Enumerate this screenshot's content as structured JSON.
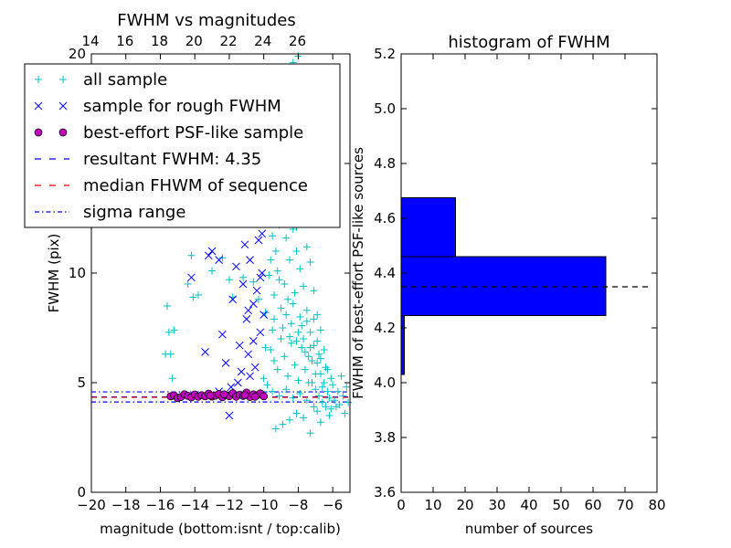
{
  "chart_data": [
    {
      "type": "scatter",
      "title": "FWHM vs magnitudes",
      "xlabel": "magnitude (bottom:isnt / top:calib)",
      "ylabel": "FWHM (pix)",
      "xlim": [
        -20,
        -5
      ],
      "ylim": [
        0,
        20
      ],
      "x_ticks": [
        -20,
        -18,
        -16,
        -14,
        -12,
        -10,
        -8,
        -6
      ],
      "x_tick_labels": [
        "−20",
        "−18",
        "−16",
        "−14",
        "−12",
        "−10",
        "−8",
        "−6"
      ],
      "y_ticks": [
        0,
        5,
        10,
        15,
        20
      ],
      "y_tick_labels": [
        "0",
        "5",
        "10",
        "15",
        "20"
      ],
      "top_axis": {
        "offset": 34.05,
        "ticks": [
          14,
          16,
          18,
          20,
          22,
          24,
          26
        ],
        "tick_labels": [
          "14",
          "16",
          "18",
          "20",
          "22",
          "24",
          "26"
        ]
      },
      "grid": false,
      "legend": {
        "placement": "upper-left",
        "entries": [
          {
            "label": "all sample",
            "marker": "plus",
            "color": "#00bfbf"
          },
          {
            "label": "sample for rough FWHM",
            "marker": "x",
            "color": "#0000ff"
          },
          {
            "label": "best-effort PSF-like sample",
            "marker": "circle",
            "color": "#bf00bf"
          },
          {
            "label": "resultant FWHM: 4.35",
            "marker": "dashed",
            "color": "#0000ff"
          },
          {
            "label": "median FHWM of sequence",
            "marker": "dashed",
            "color": "#ff0000"
          },
          {
            "label": "sigma range",
            "marker": "dashdot",
            "color": "#0000ff"
          }
        ]
      },
      "lines": [
        {
          "y": 4.35,
          "style": "dashed",
          "color": "#0000ff"
        },
        {
          "y": 4.33,
          "style": "dashed",
          "color": "#ff0000"
        },
        {
          "y": 4.58,
          "style": "dashdot",
          "color": "#0000ff"
        },
        {
          "y": 4.12,
          "style": "dashdot",
          "color": "#0000ff"
        }
      ],
      "series": [
        {
          "name": "all sample",
          "marker": "plus",
          "color": "#00bfbf",
          "points": [
            [
              -15.6,
              8.5
            ],
            [
              -15.5,
              7.3
            ],
            [
              -15.4,
              6.3
            ],
            [
              -15.3,
              5.2
            ],
            [
              -15.2,
              7.4
            ],
            [
              -15.7,
              6.3
            ],
            [
              -14.2,
              10.8
            ],
            [
              -14.1,
              8.9
            ],
            [
              -14.4,
              9.5
            ],
            [
              -13.8,
              9.0
            ],
            [
              -13.0,
              10.1
            ],
            [
              -12.4,
              10.7
            ],
            [
              -12.0,
              9.7
            ],
            [
              -11.8,
              8.9
            ],
            [
              -11.2,
              9.8
            ],
            [
              -10.6,
              9.6
            ],
            [
              -10.3,
              8.8
            ],
            [
              -9.9,
              8.2
            ],
            [
              -9.7,
              12.5
            ],
            [
              -9.6,
              13.6
            ],
            [
              -9.5,
              7.4
            ],
            [
              -9.4,
              9.0
            ],
            [
              -9.3,
              11.0
            ],
            [
              -9.2,
              10.1
            ],
            [
              -9.1,
              12.2
            ],
            [
              -9.0,
              8.4
            ],
            [
              -8.9,
              13.0
            ],
            [
              -8.8,
              9.5
            ],
            [
              -8.7,
              11.6
            ],
            [
              -8.6,
              8.8
            ],
            [
              -8.5,
              10.6
            ],
            [
              -8.4,
              7.7
            ],
            [
              -8.3,
              12.0
            ],
            [
              -8.2,
              9.1
            ],
            [
              -8.1,
              11.0
            ],
            [
              -8.0,
              7.3
            ],
            [
              -7.9,
              10.2
            ],
            [
              -7.8,
              6.6
            ],
            [
              -7.7,
              9.4
            ],
            [
              -7.6,
              5.6
            ],
            [
              -7.5,
              8.3
            ],
            [
              -7.4,
              6.2
            ],
            [
              -7.3,
              7.3
            ],
            [
              -7.2,
              5.0
            ],
            [
              -7.1,
              6.7
            ],
            [
              -7.0,
              4.7
            ],
            [
              -6.9,
              5.9
            ],
            [
              -6.8,
              4.4
            ],
            [
              -6.7,
              5.4
            ],
            [
              -6.6,
              4.1
            ],
            [
              -6.5,
              5.0
            ],
            [
              -6.4,
              3.9
            ],
            [
              -6.3,
              4.6
            ],
            [
              -6.2,
              4.3
            ],
            [
              -6.1,
              3.8
            ],
            [
              -6.0,
              4.9
            ],
            [
              -5.9,
              4.2
            ],
            [
              -5.8,
              3.9
            ],
            [
              -5.7,
              4.6
            ],
            [
              -5.6,
              4.0
            ],
            [
              -5.5,
              5.3
            ],
            [
              -5.4,
              4.4
            ],
            [
              -5.3,
              3.6
            ],
            [
              -5.2,
              4.8
            ],
            [
              -5.1,
              4.1
            ],
            [
              -9.6,
              6.5
            ],
            [
              -9.4,
              6.0
            ],
            [
              -9.2,
              5.6
            ],
            [
              -9.0,
              7.0
            ],
            [
              -8.8,
              6.2
            ],
            [
              -8.6,
              5.3
            ],
            [
              -8.4,
              6.8
            ],
            [
              -8.2,
              5.8
            ],
            [
              -8.0,
              5.1
            ],
            [
              -7.8,
              7.6
            ],
            [
              -7.6,
              6.4
            ],
            [
              -7.4,
              5.0
            ],
            [
              -7.2,
              6.0
            ],
            [
              -7.0,
              5.4
            ],
            [
              -6.8,
              6.3
            ],
            [
              -6.6,
              4.8
            ],
            [
              -6.4,
              5.7
            ],
            [
              -6.2,
              3.5
            ],
            [
              -9.8,
              4.9
            ],
            [
              -9.5,
              4.6
            ],
            [
              -9.1,
              4.4
            ],
            [
              -8.7,
              4.7
            ],
            [
              -8.3,
              4.3
            ],
            [
              -7.9,
              4.5
            ],
            [
              -7.5,
              4.2
            ],
            [
              -7.1,
              3.9
            ],
            [
              -6.9,
              3.7
            ],
            [
              -7.7,
              3.4
            ],
            [
              -8.1,
              3.6
            ],
            [
              -8.5,
              3.3
            ],
            [
              -8.9,
              3.1
            ],
            [
              -9.3,
              2.9
            ],
            [
              -7.3,
              2.7
            ],
            [
              -6.7,
              3.2
            ],
            [
              -10.0,
              5.2
            ],
            [
              -9.9,
              6.6
            ],
            [
              -8.6,
              14.2
            ],
            [
              -8.3,
              15.1
            ],
            [
              -8.0,
              13.5
            ],
            [
              -8.8,
              16.0
            ],
            [
              -8.5,
              12.8
            ],
            [
              -8.2,
              14.6
            ],
            [
              -9.0,
              15.3
            ],
            [
              -8.7,
              16.9
            ],
            [
              -8.4,
              17.8
            ],
            [
              -8.1,
              12.1
            ],
            [
              -7.9,
              14.0
            ],
            [
              -8.6,
              18.5
            ],
            [
              -8.3,
              19.6
            ],
            [
              -8.0,
              19.9
            ],
            [
              -8.5,
              17.0
            ],
            [
              -7.7,
              12.6
            ],
            [
              -7.5,
              11.2
            ],
            [
              -7.3,
              10.5
            ],
            [
              -7.1,
              9.2
            ],
            [
              -6.9,
              8.1
            ],
            [
              -6.7,
              7.4
            ],
            [
              -6.5,
              6.5
            ],
            [
              -6.3,
              5.6
            ],
            [
              -6.1,
              5.2
            ],
            [
              -9.6,
              10.6
            ],
            [
              -9.3,
              12.9
            ],
            [
              -9.7,
              9.9
            ],
            [
              -9.5,
              11.7
            ],
            [
              -9.4,
              7.9
            ],
            [
              -9.1,
              9.7
            ],
            [
              -8.9,
              7.5
            ],
            [
              -8.7,
              8.1
            ],
            [
              -8.5,
              7.1
            ],
            [
              -8.3,
              8.6
            ],
            [
              -8.1,
              6.9
            ],
            [
              -7.9,
              8.0
            ],
            [
              -7.7,
              7.0
            ],
            [
              -7.5,
              7.8
            ],
            [
              -7.3,
              6.6
            ],
            [
              -7.1,
              7.9
            ],
            [
              -6.9,
              6.9
            ],
            [
              -6.7,
              6.1
            ]
          ]
        },
        {
          "name": "sample for rough FWHM",
          "marker": "x",
          "color": "#0000ff",
          "points": [
            [
              -14.2,
              9.8
            ],
            [
              -13.4,
              6.4
            ],
            [
              -13.2,
              10.8
            ],
            [
              -13.0,
              11.0
            ],
            [
              -12.6,
              10.6
            ],
            [
              -12.4,
              7.2
            ],
            [
              -12.2,
              5.9
            ],
            [
              -12.0,
              3.5
            ],
            [
              -11.9,
              4.8
            ],
            [
              -11.8,
              8.8
            ],
            [
              -11.6,
              10.3
            ],
            [
              -11.4,
              6.7
            ],
            [
              -11.3,
              5.5
            ],
            [
              -11.2,
              9.5
            ],
            [
              -11.1,
              11.3
            ],
            [
              -11.0,
              7.9
            ],
            [
              -10.9,
              6.3
            ],
            [
              -10.8,
              10.6
            ],
            [
              -10.7,
              12.4
            ],
            [
              -10.6,
              8.6
            ],
            [
              -10.5,
              5.7
            ],
            [
              -10.4,
              9.2
            ],
            [
              -10.3,
              11.5
            ],
            [
              -10.2,
              7.3
            ],
            [
              -10.1,
              10.0
            ],
            [
              -10.0,
              8.1
            ],
            [
              -10.8,
              5.3
            ],
            [
              -11.5,
              5.0
            ],
            [
              -12.6,
              4.6
            ],
            [
              -10.4,
              12.9
            ],
            [
              -10.1,
              11.8
            ],
            [
              -10.6,
              6.9
            ],
            [
              -10.2,
              9.8
            ],
            [
              -10.9,
              8.3
            ],
            [
              -11.0,
              12.7
            ]
          ]
        },
        {
          "name": "best-effort PSF-like sample",
          "marker": "circle",
          "color": "#bf00bf",
          "points": [
            [
              -15.4,
              4.38
            ],
            [
              -15.2,
              4.42
            ],
            [
              -15.0,
              4.3
            ],
            [
              -14.8,
              4.35
            ],
            [
              -14.6,
              4.47
            ],
            [
              -14.4,
              4.4
            ],
            [
              -14.2,
              4.33
            ],
            [
              -14.0,
              4.46
            ],
            [
              -13.8,
              4.36
            ],
            [
              -13.6,
              4.43
            ],
            [
              -13.4,
              4.38
            ],
            [
              -13.2,
              4.5
            ],
            [
              -13.0,
              4.37
            ],
            [
              -12.8,
              4.41
            ],
            [
              -12.6,
              4.48
            ],
            [
              -12.4,
              4.34
            ],
            [
              -12.2,
              4.44
            ],
            [
              -12.0,
              4.39
            ],
            [
              -11.8,
              4.52
            ],
            [
              -11.6,
              4.36
            ],
            [
              -11.4,
              4.45
            ],
            [
              -11.2,
              4.4
            ],
            [
              -11.0,
              4.55
            ],
            [
              -10.8,
              4.35
            ],
            [
              -10.6,
              4.47
            ],
            [
              -10.4,
              4.42
            ],
            [
              -10.2,
              4.51
            ],
            [
              -10.0,
              4.38
            ],
            [
              -13.1,
              4.41
            ],
            [
              -12.3,
              4.47
            ],
            [
              -11.1,
              4.43
            ],
            [
              -10.5,
              4.36
            ]
          ]
        }
      ]
    },
    {
      "type": "histogram",
      "orientation": "horizontal",
      "title": "histogram of FWHM",
      "xlabel": "number of sources",
      "ylabel": "FWHM of best-effort PSF-like sources",
      "xlim": [
        0,
        80
      ],
      "ylim": [
        3.6,
        5.2
      ],
      "x_ticks": [
        0,
        10,
        20,
        30,
        40,
        50,
        60,
        70,
        80
      ],
      "x_tick_labels": [
        "0",
        "10",
        "20",
        "30",
        "40",
        "50",
        "60",
        "70",
        "80"
      ],
      "y_ticks": [
        3.6,
        3.8,
        4.0,
        4.2,
        4.4,
        4.6,
        4.8,
        5.0,
        5.2
      ],
      "y_tick_labels": [
        "3.6",
        "3.8",
        "4.0",
        "4.2",
        "4.4",
        "4.6",
        "4.8",
        "5.0",
        "5.2"
      ],
      "grid": false,
      "bins": [
        {
          "from": 4.03,
          "to": 4.245,
          "count": 1
        },
        {
          "from": 4.245,
          "to": 4.46,
          "count": 64
        },
        {
          "from": 4.46,
          "to": 4.675,
          "count": 17
        },
        {
          "from": 4.675,
          "to": 5.09,
          "count": 0
        }
      ],
      "bar_color": "#0000ff",
      "reference_line": {
        "y": 4.35,
        "x_to": 78,
        "style": "dashed",
        "color": "#000000"
      }
    }
  ]
}
